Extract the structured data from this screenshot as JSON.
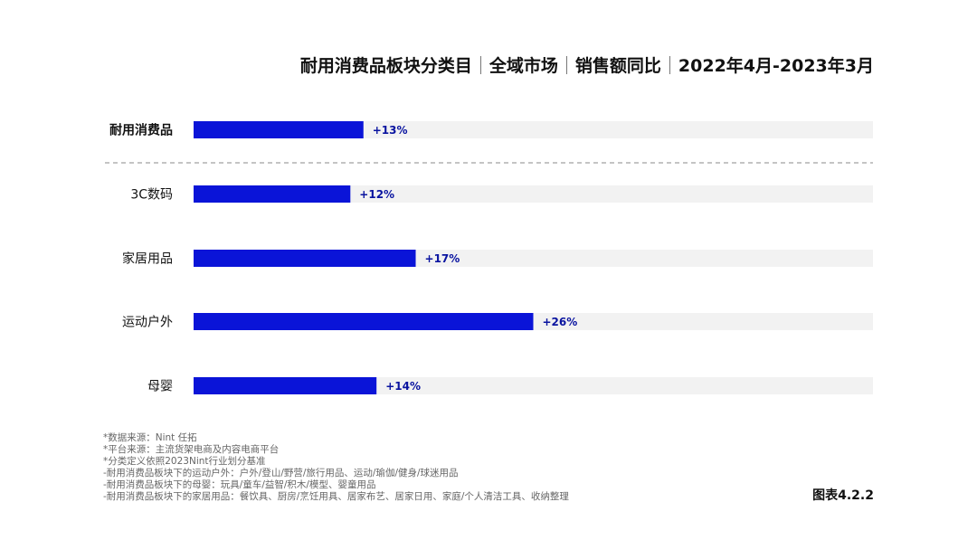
{
  "title_parts": [
    "耐用消费品板块分类目",
    "全域市场",
    "销售额同比",
    "2022年4月-2023年3月"
  ],
  "colors": {
    "bar": "#0a14d8",
    "track": "#f2f2f2",
    "label": "#111111",
    "value": "#0a14a0"
  },
  "chart_data": {
    "type": "bar",
    "orientation": "horizontal",
    "categories": [
      "耐用消费品",
      "3C数码",
      "家居用品",
      "运动户外",
      "母婴"
    ],
    "values": [
      13,
      12,
      17,
      26,
      14
    ],
    "value_labels": [
      "+13%",
      "+12%",
      "+17%",
      "+26%",
      "+14%"
    ],
    "unit": "%",
    "xlim": [
      0,
      52
    ],
    "divider_after_index": 0,
    "grid": false,
    "legend": "none"
  },
  "notes": [
    "*数据来源：Nint 任拓",
    "*平台来源：主流货架电商及内容电商平台",
    "*分类定义依照2023Nint行业划分基准",
    "-耐用消费品板块下的运动户外：户外/登山/野营/旅行用品、运动/瑜伽/健身/球迷用品",
    "-耐用消费品板块下的母婴：玩具/童车/益智/积木/模型、婴童用品",
    "-耐用消费品板块下的家居用品：餐饮具、厨房/烹饪用具、居家布艺、居家日用、家庭/个人清洁工具、收纳整理"
  ],
  "figure_label": "图表4.2.2"
}
